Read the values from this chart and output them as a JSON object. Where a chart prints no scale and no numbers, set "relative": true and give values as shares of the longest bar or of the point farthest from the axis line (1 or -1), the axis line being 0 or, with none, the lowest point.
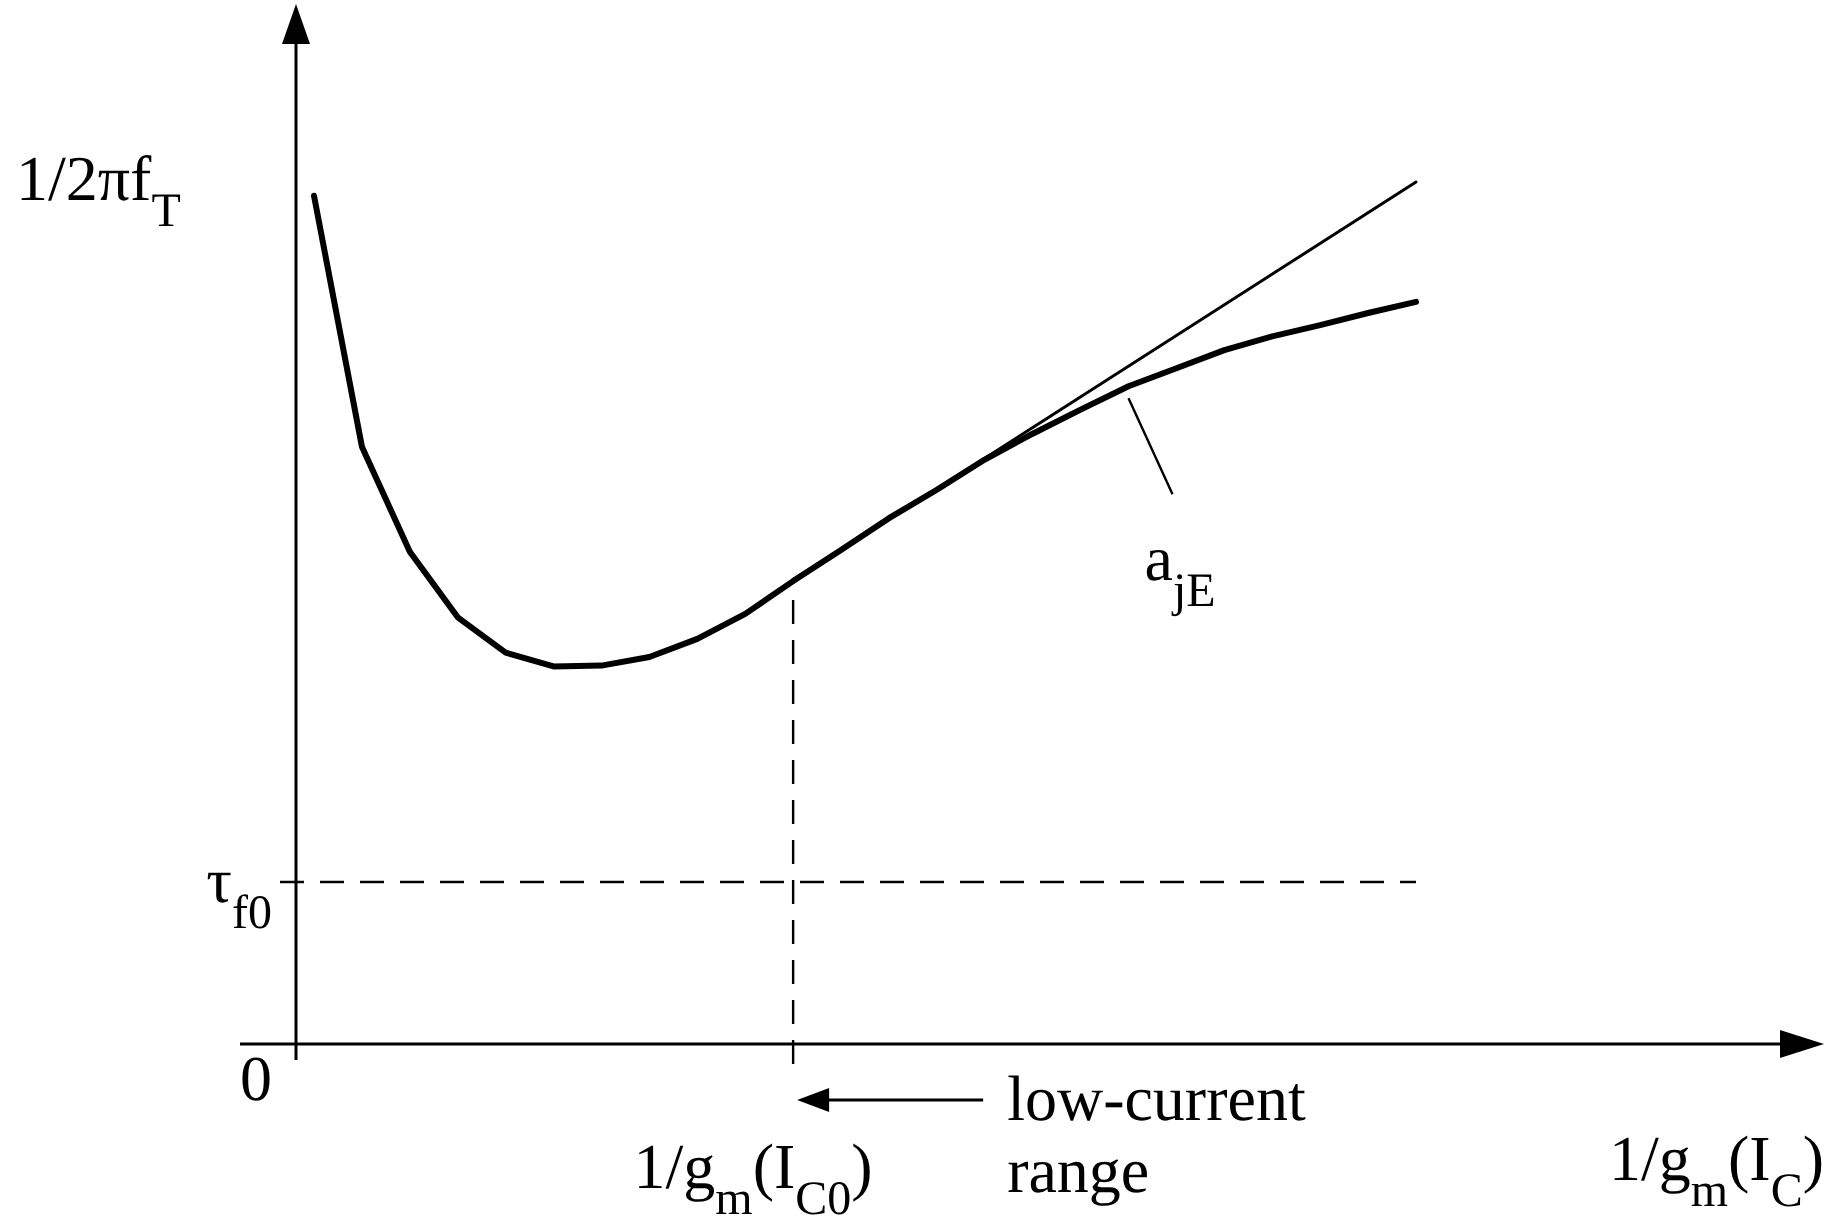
{
  "chart_data": {
    "type": "line",
    "relative": true,
    "ylabel": "1/2πf$_{T}$",
    "xlabel": "1/g$_{m}$(I$_{C}$)",
    "categories": [
      null,
      null,
      null,
      null,
      null,
      null,
      null,
      null,
      null,
      null,
      null,
      null,
      null,
      null,
      null,
      null,
      null,
      null,
      null,
      null,
      null,
      null,
      null,
      null
    ],
    "series": [
      {
        "color": "#000000",
        "values": [
          0.984,
          0.693,
          0.571,
          0.495,
          0.454,
          0.438,
          0.439,
          0.449,
          0.47,
          0.499,
          0.537,
          0.573,
          0.61,
          0.643,
          0.678,
          0.708,
          0.736,
          0.763,
          0.784,
          0.805,
          0.821,
          0.834,
          0.848,
          0.861
        ]
      },
      {
        "color": "#000000",
        "values": [
          null,
          null,
          null,
          null,
          null,
          null,
          null,
          null,
          null,
          null,
          0.537,
          null,
          null,
          null,
          null,
          null,
          null,
          null,
          null,
          null,
          null,
          null,
          null,
          1.0
        ]
      }
    ],
    "ref_lines": [
      {
        "axis": "y",
        "value": 0.188,
        "label": "τ$_{f0}$",
        "line_style": "dashed"
      }
    ],
    "annotations": [
      "a$_{jE}$",
      "low-current range",
      "0",
      "1/g$_{m}$(I$_{C0}$)"
    ]
  }
}
